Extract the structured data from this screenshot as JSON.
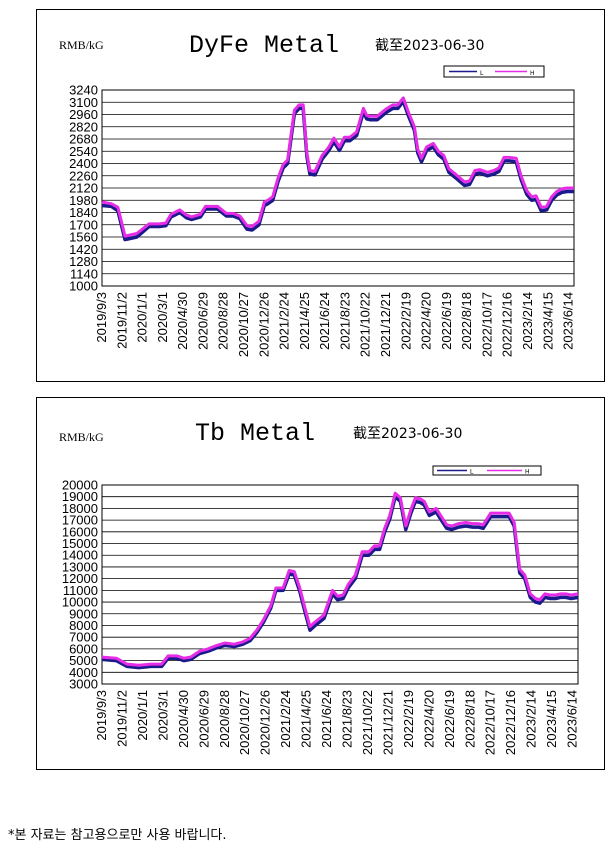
{
  "footnote": "*본 자료는 참고용으로만 사용 바랍니다.",
  "colors": {
    "series_low": "#1a1a8c",
    "series_high": "#e62ce6",
    "grid": "#000000",
    "frame": "#000000"
  },
  "chart_data": [
    {
      "type": "line",
      "title": "DyFe Metal",
      "subtitle": "截至2023-06-30",
      "ylabel": "RMB/kG",
      "legend": [
        "L",
        "H"
      ],
      "legend_position": "top-right",
      "grid": true,
      "ylim": [
        1000,
        3240
      ],
      "y_ticks": [
        "3240",
        "3100",
        "2960",
        "2820",
        "2680",
        "2540",
        "2400",
        "2260",
        "2120",
        "1980",
        "1840",
        "1700",
        "1560",
        "1420",
        "1280",
        "1140",
        "1000"
      ],
      "x_ticks": [
        "2019/9/3",
        "2019/11/2",
        "2020/1/1",
        "2020/3/1",
        "2020/4/30",
        "2020/6/29",
        "2020/8/28",
        "2020/10/27",
        "2020/12/26",
        "2021/2/24",
        "2021/4/25",
        "2021/6/24",
        "2021/8/23",
        "2021/10/22",
        "2021/12/21",
        "2022/2/19",
        "2022/4/20",
        "2022/6/19",
        "2022/8/18",
        "2022/10/17",
        "2022/12/16",
        "2023/2/14",
        "2023/4/15",
        "2023/6/14"
      ],
      "x": [
        "2019-09-03",
        "2019-10-01",
        "2019-10-20",
        "2019-11-10",
        "2019-12-15",
        "2020-01-20",
        "2020-02-20",
        "2020-03-10",
        "2020-03-25",
        "2020-04-20",
        "2020-05-10",
        "2020-05-25",
        "2020-06-20",
        "2020-07-05",
        "2020-08-10",
        "2020-09-05",
        "2020-09-25",
        "2020-10-15",
        "2020-11-05",
        "2020-11-20",
        "2020-12-10",
        "2020-12-26",
        "2021-01-05",
        "2021-01-20",
        "2021-02-05",
        "2021-02-20",
        "2021-03-05",
        "2021-03-25",
        "2021-04-08",
        "2021-04-20",
        "2021-05-01",
        "2021-05-10",
        "2021-05-25",
        "2021-06-15",
        "2021-07-05",
        "2021-07-20",
        "2021-08-05",
        "2021-08-20",
        "2021-09-05",
        "2021-09-25",
        "2021-10-15",
        "2021-10-25",
        "2021-11-05",
        "2021-11-25",
        "2021-12-20",
        "2022-01-10",
        "2022-01-25",
        "2022-02-10",
        "2022-02-25",
        "2022-03-15",
        "2022-03-25",
        "2022-04-05",
        "2022-04-20",
        "2022-05-10",
        "2022-05-25",
        "2022-06-10",
        "2022-06-25",
        "2022-07-20",
        "2022-08-10",
        "2022-08-25",
        "2022-09-10",
        "2022-09-25",
        "2022-10-17",
        "2022-11-05",
        "2022-11-20",
        "2022-12-05",
        "2022-12-20",
        "2023-01-10",
        "2023-01-25",
        "2023-02-10",
        "2023-02-25",
        "2023-03-10",
        "2023-03-25",
        "2023-04-10",
        "2023-04-25",
        "2023-05-10",
        "2023-05-25",
        "2023-06-10",
        "2023-06-30"
      ],
      "series": [
        {
          "name": "L",
          "values": [
            1920,
            1910,
            1860,
            1530,
            1560,
            1680,
            1680,
            1690,
            1790,
            1840,
            1780,
            1760,
            1790,
            1880,
            1880,
            1800,
            1800,
            1770,
            1650,
            1640,
            1700,
            1920,
            1940,
            1980,
            2200,
            2350,
            2400,
            2970,
            3030,
            3030,
            2480,
            2280,
            2270,
            2450,
            2550,
            2650,
            2550,
            2660,
            2660,
            2720,
            2990,
            2910,
            2900,
            2900,
            2980,
            3030,
            3030,
            3110,
            2950,
            2780,
            2520,
            2420,
            2550,
            2590,
            2500,
            2450,
            2300,
            2220,
            2150,
            2160,
            2280,
            2290,
            2260,
            2280,
            2310,
            2430,
            2430,
            2420,
            2210,
            2050,
            1980,
            1990,
            1860,
            1870,
            1980,
            2040,
            2070,
            2080,
            2080
          ]
        },
        {
          "name": "H",
          "values": [
            1960,
            1940,
            1900,
            1570,
            1600,
            1710,
            1710,
            1720,
            1820,
            1870,
            1810,
            1790,
            1820,
            1910,
            1910,
            1830,
            1830,
            1800,
            1690,
            1680,
            1740,
            1960,
            1980,
            2020,
            2240,
            2390,
            2440,
            3010,
            3070,
            3070,
            2520,
            2320,
            2310,
            2490,
            2590,
            2690,
            2590,
            2700,
            2700,
            2760,
            3030,
            2950,
            2940,
            2940,
            3020,
            3070,
            3070,
            3150,
            2990,
            2820,
            2560,
            2460,
            2590,
            2630,
            2540,
            2490,
            2340,
            2260,
            2190,
            2200,
            2320,
            2330,
            2300,
            2320,
            2350,
            2470,
            2470,
            2460,
            2250,
            2090,
            2020,
            2030,
            1900,
            1910,
            2020,
            2080,
            2110,
            2120,
            2120
          ]
        }
      ]
    },
    {
      "type": "line",
      "title": "Tb Metal",
      "subtitle": "截至2023-06-30",
      "ylabel": "RMB/kG",
      "legend": [
        "L",
        "H"
      ],
      "legend_position": "top-right",
      "grid": true,
      "ylim": [
        3000,
        20000
      ],
      "y_ticks": [
        "20000",
        "19000",
        "18000",
        "17000",
        "16000",
        "15000",
        "14000",
        "13000",
        "12000",
        "11000",
        "10000",
        "9000",
        "8000",
        "7000",
        "6000",
        "5000",
        "4000",
        "3000"
      ],
      "x_ticks": [
        "2019/9/3",
        "2019/11/2",
        "2020/1/1",
        "2020/3/1",
        "2020/4/30",
        "2020/6/29",
        "2020/8/28",
        "2020/10/27",
        "2020/12/26",
        "2021/2/24",
        "2021/4/25",
        "2021/6/24",
        "2021/8/23",
        "2021/10/22",
        "2021/12/21",
        "2022/2/19",
        "2022/4/20",
        "2022/6/19",
        "2022/8/18",
        "2022/10/17",
        "2022/12/16",
        "2023/2/14",
        "2023/4/15",
        "2023/6/14"
      ],
      "x": [
        "2019-09-03",
        "2019-10-15",
        "2019-11-15",
        "2019-12-20",
        "2020-01-25",
        "2020-02-25",
        "2020-03-15",
        "2020-04-10",
        "2020-04-30",
        "2020-05-20",
        "2020-06-15",
        "2020-07-10",
        "2020-08-05",
        "2020-08-28",
        "2020-09-25",
        "2020-10-20",
        "2020-11-10",
        "2020-11-30",
        "2020-12-20",
        "2021-01-10",
        "2021-01-25",
        "2021-02-15",
        "2021-03-05",
        "2021-03-20",
        "2021-04-05",
        "2021-04-20",
        "2021-05-05",
        "2021-05-20",
        "2021-06-15",
        "2021-07-10",
        "2021-07-25",
        "2021-08-10",
        "2021-08-25",
        "2021-09-15",
        "2021-10-05",
        "2021-10-25",
        "2021-11-10",
        "2021-11-25",
        "2021-12-10",
        "2021-12-25",
        "2022-01-10",
        "2022-01-25",
        "2022-02-10",
        "2022-02-25",
        "2022-03-10",
        "2022-03-25",
        "2022-04-05",
        "2022-04-20",
        "2022-05-10",
        "2022-05-25",
        "2022-06-10",
        "2022-06-25",
        "2022-07-15",
        "2022-08-05",
        "2022-08-25",
        "2022-09-10",
        "2022-09-25",
        "2022-10-17",
        "2022-11-05",
        "2022-11-25",
        "2022-12-10",
        "2022-12-25",
        "2023-01-10",
        "2023-01-25",
        "2023-02-10",
        "2023-02-25",
        "2023-03-10",
        "2023-03-25",
        "2023-04-10",
        "2023-04-25",
        "2023-05-10",
        "2023-05-25",
        "2023-06-10",
        "2023-06-30"
      ],
      "series": [
        {
          "name": "L",
          "values": [
            5100,
            5000,
            4500,
            4400,
            4500,
            4500,
            5200,
            5200,
            5000,
            5100,
            5600,
            5800,
            6100,
            6300,
            6200,
            6400,
            6700,
            7400,
            8300,
            9500,
            11000,
            11000,
            12400,
            12300,
            10900,
            9200,
            7600,
            8000,
            8600,
            10700,
            10200,
            10300,
            11200,
            12000,
            14000,
            14000,
            14500,
            14500,
            16000,
            17100,
            19000,
            18600,
            16200,
            17600,
            18600,
            18500,
            18300,
            17400,
            17700,
            17000,
            16300,
            16200,
            16400,
            16500,
            16400,
            16400,
            16300,
            17300,
            17300,
            17300,
            17300,
            16500,
            12500,
            12000,
            10400,
            10000,
            9900,
            10400,
            10300,
            10300,
            10400,
            10400,
            10300,
            10400
          ]
        },
        {
          "name": "H",
          "values": [
            5300,
            5200,
            4700,
            4600,
            4700,
            4700,
            5400,
            5400,
            5200,
            5300,
            5800,
            6000,
            6300,
            6500,
            6400,
            6600,
            6900,
            7600,
            8500,
            9700,
            11200,
            11200,
            12700,
            12600,
            11200,
            9500,
            7900,
            8300,
            8900,
            11000,
            10500,
            10600,
            11500,
            12300,
            14300,
            14300,
            14800,
            14800,
            16300,
            17400,
            19300,
            18900,
            16500,
            17900,
            18900,
            18800,
            18600,
            17700,
            18000,
            17300,
            16600,
            16500,
            16700,
            16800,
            16700,
            16700,
            16600,
            17600,
            17600,
            17600,
            17600,
            16800,
            12800,
            12300,
            10700,
            10300,
            10200,
            10700,
            10600,
            10600,
            10700,
            10700,
            10600,
            10700
          ]
        }
      ]
    }
  ]
}
